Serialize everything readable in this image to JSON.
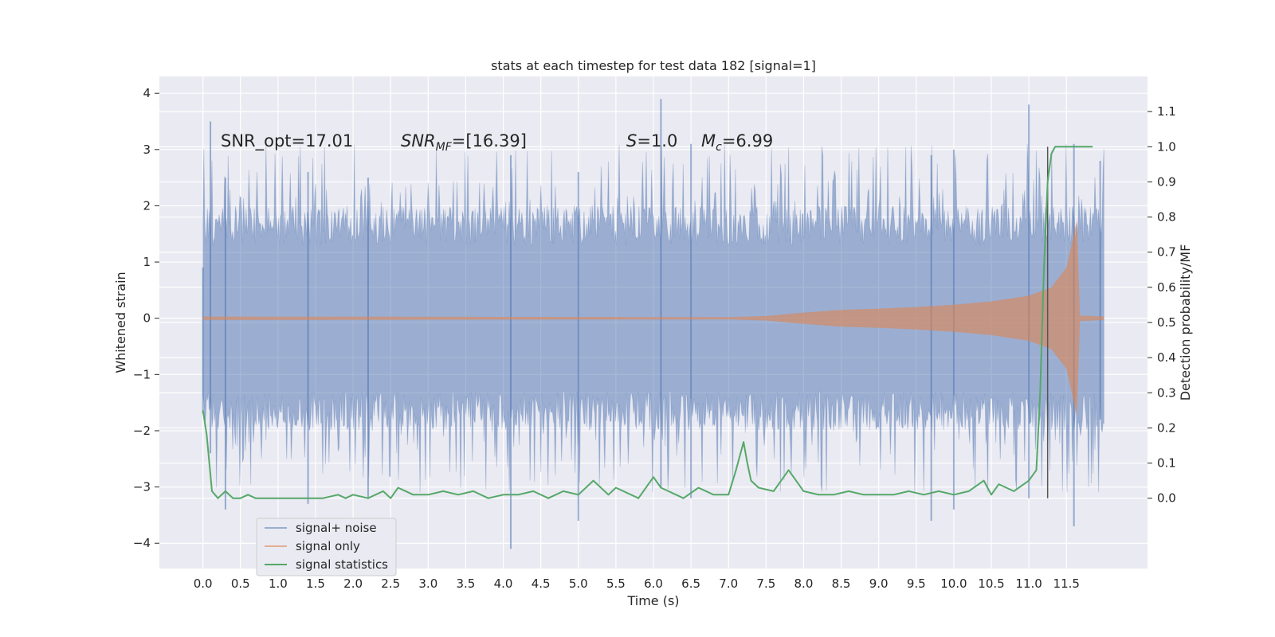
{
  "chart_data": {
    "type": "line",
    "title": "stats at each timestep for test data 182 [signal=1]",
    "xlabel": "Time (s)",
    "ylabel": "Whitened strain",
    "ylabel_right": "Detection probability/MF",
    "xlim": [
      -0.58,
      12.58
    ],
    "ylim": [
      -4.45,
      4.3
    ],
    "ylim_right": [
      -0.2,
      1.2
    ],
    "x_ticks": [
      "0.0",
      "0.5",
      "1.0",
      "1.5",
      "2.0",
      "2.5",
      "3.0",
      "3.5",
      "4.0",
      "4.5",
      "5.0",
      "5.5",
      "6.0",
      "6.5",
      "7.0",
      "7.5",
      "8.0",
      "8.5",
      "9.0",
      "9.5",
      "10.0",
      "10.5",
      "11.0",
      "11.5"
    ],
    "y_ticks": [
      "−4",
      "−3",
      "−2",
      "−1",
      "0",
      "1",
      "2",
      "3",
      "4"
    ],
    "y_ticks_right": [
      "0.0",
      "0.1",
      "0.2",
      "0.3",
      "0.4",
      "0.5",
      "0.6",
      "0.7",
      "0.8",
      "0.9",
      "1.0",
      "1.1"
    ],
    "annotations": [
      {
        "text": "SNR_opt=17.01",
        "x": 0.2,
        "y": 3.1
      },
      {
        "text": "SNR",
        "sub": "MF",
        "suffix": "=[16.39]",
        "x": 2.6,
        "y": 3.1
      },
      {
        "text": "S",
        "suffix": "=1.0",
        "x": 5.6,
        "y": 3.1
      },
      {
        "text": "M",
        "sub": "c",
        "suffix": "=6.99",
        "x": 6.6,
        "y": 3.1
      }
    ],
    "legend": {
      "position": "lower-left",
      "entries": [
        "signal+ noise",
        "signal only",
        "signal statistics"
      ]
    },
    "vline_x": 11.25,
    "series": [
      {
        "name": "signal+ noise",
        "color": "#4c72b0",
        "description": "dense whitened strain, band approx ±1.2 with spikes to about ±3.5",
        "band": [
          -1.3,
          1.3
        ],
        "extremes": [
          [
            0.0,
            -1.7,
            0.9
          ],
          [
            0.1,
            -2.4,
            3.5
          ],
          [
            0.3,
            -3.4,
            2.5
          ],
          [
            1.4,
            -3.3,
            2.6
          ],
          [
            2.2,
            -3.2,
            2.5
          ],
          [
            4.1,
            -4.1,
            2.9
          ],
          [
            5.0,
            -3.6,
            2.6
          ],
          [
            6.1,
            -3.0,
            3.9
          ],
          [
            6.5,
            -3.2,
            3.1
          ],
          [
            9.7,
            -3.6,
            2.9
          ],
          [
            10.0,
            -3.4,
            3.0
          ],
          [
            11.0,
            -3.2,
            3.8
          ],
          [
            11.6,
            -3.7,
            3.1
          ],
          [
            11.95,
            -1.8,
            2.8
          ]
        ]
      },
      {
        "name": "signal only",
        "color": "#dd8452",
        "description": "chirp envelope growing from ~0 to ±1.8 then abruptly ending",
        "envelope": [
          [
            0.0,
            0.03
          ],
          [
            7.0,
            0.02
          ],
          [
            7.5,
            0.04
          ],
          [
            8.0,
            0.1
          ],
          [
            8.5,
            0.15
          ],
          [
            9.0,
            0.17
          ],
          [
            9.5,
            0.2
          ],
          [
            10.0,
            0.24
          ],
          [
            10.5,
            0.3
          ],
          [
            11.0,
            0.4
          ],
          [
            11.3,
            0.55
          ],
          [
            11.5,
            0.9
          ],
          [
            11.6,
            1.5
          ],
          [
            11.65,
            1.8
          ],
          [
            11.67,
            0.05
          ],
          [
            12.0,
            0.03
          ]
        ]
      },
      {
        "name": "signal statistics",
        "color": "#55a868",
        "axis": "right",
        "x": [
          0.0,
          0.05,
          0.12,
          0.2,
          0.3,
          0.4,
          0.5,
          0.6,
          0.7,
          0.8,
          1.0,
          1.2,
          1.4,
          1.6,
          1.8,
          1.9,
          2.0,
          2.2,
          2.4,
          2.5,
          2.6,
          2.8,
          3.0,
          3.2,
          3.4,
          3.6,
          3.8,
          4.0,
          4.2,
          4.4,
          4.6,
          4.8,
          5.0,
          5.2,
          5.4,
          5.5,
          5.6,
          5.8,
          6.0,
          6.1,
          6.2,
          6.4,
          6.6,
          6.8,
          7.0,
          7.1,
          7.2,
          7.25,
          7.3,
          7.4,
          7.6,
          7.8,
          7.9,
          8.0,
          8.2,
          8.4,
          8.6,
          8.8,
          9.0,
          9.2,
          9.4,
          9.6,
          9.8,
          10.0,
          10.2,
          10.4,
          10.5,
          10.6,
          10.8,
          11.0,
          11.1,
          11.15,
          11.2,
          11.25,
          11.3,
          11.35,
          11.4,
          11.5,
          11.7,
          11.85
        ],
        "values": [
          0.25,
          0.18,
          0.02,
          0.0,
          0.02,
          0.0,
          0.0,
          0.01,
          0.0,
          0.0,
          0.0,
          0.0,
          0.0,
          0.0,
          0.01,
          0.0,
          0.01,
          0.0,
          0.02,
          0.0,
          0.03,
          0.01,
          0.01,
          0.02,
          0.01,
          0.02,
          0.0,
          0.01,
          0.01,
          0.02,
          0.0,
          0.02,
          0.01,
          0.05,
          0.01,
          0.03,
          0.02,
          0.0,
          0.06,
          0.03,
          0.02,
          0.0,
          0.03,
          0.01,
          0.01,
          0.08,
          0.16,
          0.1,
          0.05,
          0.03,
          0.02,
          0.08,
          0.05,
          0.02,
          0.01,
          0.01,
          0.02,
          0.01,
          0.01,
          0.01,
          0.02,
          0.01,
          0.02,
          0.01,
          0.02,
          0.05,
          0.01,
          0.04,
          0.02,
          0.05,
          0.08,
          0.3,
          0.65,
          0.9,
          0.98,
          1.0,
          1.0,
          1.0,
          1.0,
          1.0
        ]
      }
    ]
  }
}
